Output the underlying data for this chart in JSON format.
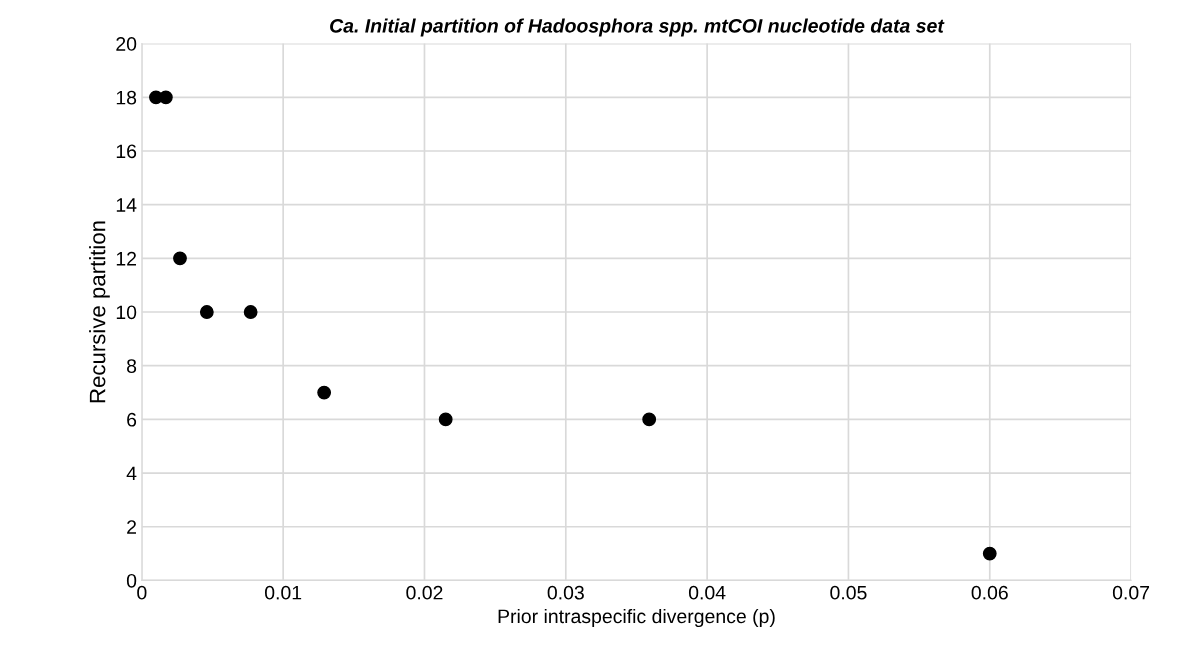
{
  "chart_data": {
    "type": "scatter",
    "title": "Ca. Initial partition of Hadoosphora spp. mtCOI nucleotide data set",
    "xlabel": "Prior intraspecific divergence (p)",
    "ylabel": "Recursive partition",
    "series": [
      {
        "color": "#000000",
        "x": [
          0.001,
          0.0017,
          0.0027,
          0.0046,
          0.0077,
          0.0129,
          0.0215,
          0.0359,
          0.06
        ],
        "values": [
          18,
          18,
          12,
          10,
          10,
          7,
          6,
          6,
          1
        ]
      }
    ],
    "xlim": [
      0,
      0.07
    ],
    "xticks": [
      0,
      0.01,
      0.02,
      0.03,
      0.04,
      0.05,
      0.06,
      0.07
    ],
    "ylim": [
      0,
      20
    ],
    "yticks": [
      0,
      2,
      4,
      6,
      8,
      10,
      12,
      14,
      16,
      18,
      20
    ],
    "grid": true,
    "marker": "circle"
  }
}
